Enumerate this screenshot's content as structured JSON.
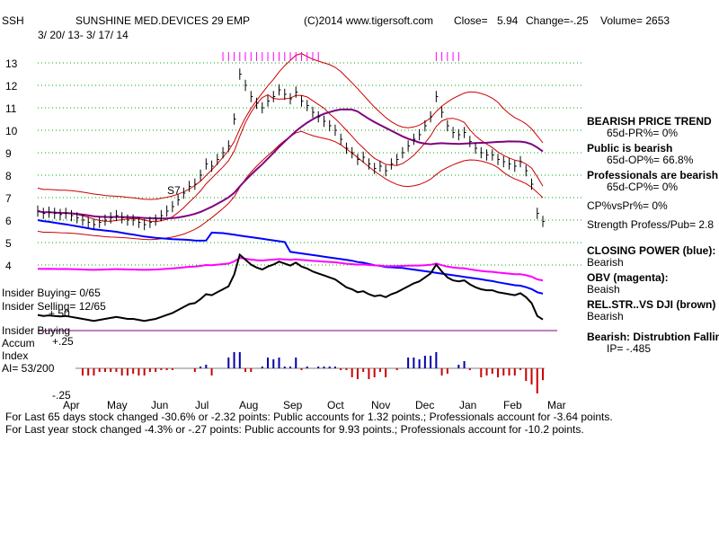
{
  "header": {
    "ticker": "SSH",
    "name": "SUNSHINE MED.DEVICES 29 EMP",
    "copyright": "(C)2014 www.tigersoft.com",
    "close_label": "Close=",
    "close_value": "5.94",
    "change_label": "Change=-.25",
    "volume_label": "Volume= 2653",
    "date_range": "3/ 20/ 13- 3/ 17/ 14"
  },
  "chart_data": {
    "type": "line",
    "price_axis": {
      "ticks": [
        13,
        12,
        11,
        10,
        9,
        8,
        7,
        6,
        5,
        4
      ],
      "ylim": [
        3.5,
        13.5
      ]
    },
    "x_axis": {
      "months": [
        "Apr",
        "May",
        "Jun",
        "Jul",
        "Aug",
        "Sep",
        "Oct",
        "Nov",
        "Dec",
        "Jan",
        "Feb",
        "Mar"
      ]
    },
    "price_close": [
      6.4,
      6.3,
      6.35,
      6.3,
      6.25,
      6.3,
      6.2,
      6.1,
      6.0,
      5.9,
      5.8,
      5.9,
      6.0,
      6.1,
      6.2,
      6.1,
      6.0,
      6.0,
      5.9,
      5.8,
      5.9,
      6.0,
      6.2,
      6.4,
      6.6,
      6.9,
      7.2,
      7.5,
      7.6,
      8.0,
      8.5,
      8.4,
      8.7,
      9.0,
      9.3,
      10.5,
      12.5,
      12.0,
      11.5,
      11.2,
      11.0,
      11.3,
      11.5,
      11.8,
      11.6,
      11.4,
      11.7,
      11.3,
      11.1,
      10.8,
      10.6,
      10.4,
      10.2,
      10.0,
      9.6,
      9.2,
      9.0,
      8.7,
      8.8,
      8.5,
      8.3,
      8.4,
      8.2,
      8.5,
      8.7,
      9.0,
      9.3,
      9.6,
      9.8,
      10.2,
      10.6,
      11.5,
      10.8,
      10.2,
      9.9,
      9.8,
      9.9,
      9.5,
      9.2,
      9.0,
      8.9,
      8.9,
      8.7,
      8.6,
      8.5,
      8.4,
      8.6,
      8.2,
      7.6,
      6.3,
      5.94
    ],
    "sample_annotation": "S7",
    "indicator_labels": [
      "Insider Buying= 0/65",
      "Insider Selling= 12/65",
      "Insider Buying"
    ],
    "accum_label": "Accum",
    "index_label": "Index",
    "ai_label": "AI= 53/200",
    "accum_ticks": [
      "+.50",
      "+.25",
      "-.25"
    ]
  },
  "right_panel": {
    "l1": "BEARISH PRICE TREND",
    "l2": "65d-PR%= 0%",
    "l3": "Public is bearish",
    "l4": "65d-OP%= 66.8%",
    "l5": "Professionals are bearish",
    "l6": "65d-CP%= 0%",
    "l7": "CP%vsPr%=  0%",
    "l8": "Strength Profess/Pub= 2.8",
    "l9": "CLOSING POWER (blue):",
    "l10": "Bearish",
    "l11": "OBV (magenta):",
    "l12": "Beaish",
    "l13": "REL.STR..VS DJI (brown)",
    "l14": "Bearish",
    "l15": "Bearish: Distrubtion Falling",
    "l16": "IP= -.485"
  },
  "footer": {
    "line1": "For Last 65 days stock changed -30.6% or -2.32 points:  Public accounts for  1.32 points.;  Professionals account for -3.64 points.",
    "line2": "For Last year stock changed -4.3% or -.27 points:  Public accounts for  9.93 points.;  Professionals account for -10.2 points."
  },
  "colors": {
    "price": "#000000",
    "band_red": "#cc0000",
    "ma_purple": "#800080",
    "closing_power": "#0000ff",
    "obv": "#ff00ff",
    "rel_str": "#000000",
    "accum_pos": "#0000aa",
    "accum_neg": "#cc0000",
    "grid": "#00aa00"
  }
}
